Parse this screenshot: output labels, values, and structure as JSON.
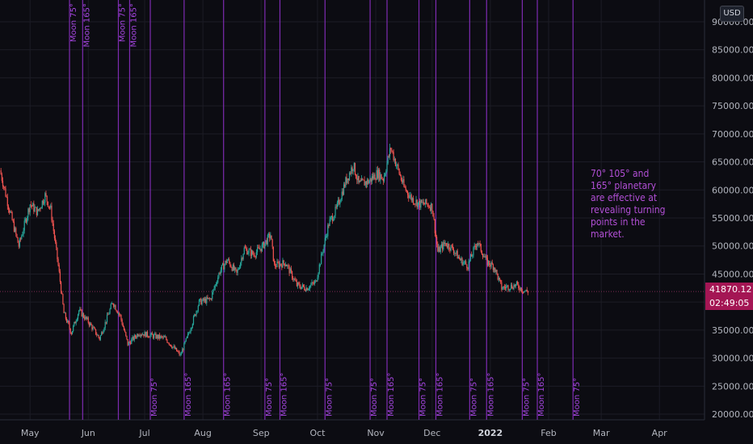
{
  "currency_label": "USD",
  "annotation_text": "70° 105° and 165° planetary are effective at revealing turning points in the market.",
  "current_price": "41870.12",
  "countdown": "02:49:05",
  "colors": {
    "background": "#0c0c12",
    "grid": "#1c1c26",
    "moon_line": "#8a2fc2",
    "moon_label": "#a545e0",
    "candle_up": "#26a69a",
    "candle_down": "#ef5350",
    "price_line": "#7d2a52",
    "axis_text": "#b2b5be"
  },
  "chart_data": {
    "type": "candlestick",
    "title": "",
    "xlabel": "",
    "ylabel": "",
    "x_range": [
      "2021-04-15",
      "2022-04-25"
    ],
    "ylim": [
      19000,
      91000
    ],
    "y_ticks": [
      20000,
      25000,
      30000,
      35000,
      40000,
      45000,
      50000,
      55000,
      60000,
      65000,
      70000,
      75000,
      80000,
      85000,
      90000
    ],
    "y_tick_labels": [
      "20000.00",
      "25000.00",
      "30000.00",
      "35000.00",
      "40000.00",
      "45000.00",
      "50000.00",
      "55000.00",
      "60000.00",
      "65000.00",
      "70000.00",
      "75000.00",
      "80000.00",
      "85000.00",
      "90000.00"
    ],
    "x_ticks": [
      {
        "date": "2021-05-01",
        "label": "May"
      },
      {
        "date": "2021-06-01",
        "label": "Jun"
      },
      {
        "date": "2021-07-01",
        "label": "Jul"
      },
      {
        "date": "2021-08-01",
        "label": "Aug"
      },
      {
        "date": "2021-09-01",
        "label": "Sep"
      },
      {
        "date": "2021-10-01",
        "label": "Oct"
      },
      {
        "date": "2021-11-01",
        "label": "Nov"
      },
      {
        "date": "2021-12-01",
        "label": "Dec"
      },
      {
        "date": "2022-01-01",
        "label": "2022"
      },
      {
        "date": "2022-02-01",
        "label": "Feb"
      },
      {
        "date": "2022-03-01",
        "label": "Mar"
      },
      {
        "date": "2022-04-01",
        "label": "Apr"
      }
    ],
    "grid": true,
    "last_price": 41870.12,
    "price_anchors": [
      [
        "2021-04-15",
        63500
      ],
      [
        "2021-04-20",
        56500
      ],
      [
        "2021-04-25",
        50000
      ],
      [
        "2021-05-01",
        57500
      ],
      [
        "2021-05-05",
        56000
      ],
      [
        "2021-05-09",
        59000
      ],
      [
        "2021-05-12",
        56500
      ],
      [
        "2021-05-16",
        46500
      ],
      [
        "2021-05-19",
        38000
      ],
      [
        "2021-05-23",
        34500
      ],
      [
        "2021-05-27",
        38500
      ],
      [
        "2021-06-01",
        36500
      ],
      [
        "2021-06-07",
        33500
      ],
      [
        "2021-06-14",
        40000
      ],
      [
        "2021-06-18",
        37500
      ],
      [
        "2021-06-22",
        32500
      ],
      [
        "2021-06-28",
        34500
      ],
      [
        "2021-07-05",
        34000
      ],
      [
        "2021-07-12",
        33500
      ],
      [
        "2021-07-20",
        30500
      ],
      [
        "2021-07-24",
        34000
      ],
      [
        "2021-07-30",
        40000
      ],
      [
        "2021-08-05",
        40500
      ],
      [
        "2021-08-10",
        45500
      ],
      [
        "2021-08-14",
        47500
      ],
      [
        "2021-08-19",
        45000
      ],
      [
        "2021-08-23",
        49500
      ],
      [
        "2021-08-28",
        48500
      ],
      [
        "2021-09-02",
        50000
      ],
      [
        "2021-09-06",
        52000
      ],
      [
        "2021-09-08",
        46500
      ],
      [
        "2021-09-14",
        47000
      ],
      [
        "2021-09-20",
        43000
      ],
      [
        "2021-09-25",
        42500
      ],
      [
        "2021-09-30",
        43500
      ],
      [
        "2021-10-03",
        48000
      ],
      [
        "2021-10-07",
        54000
      ],
      [
        "2021-10-11",
        56500
      ],
      [
        "2021-10-16",
        61500
      ],
      [
        "2021-10-20",
        64500
      ],
      [
        "2021-10-23",
        61000
      ],
      [
        "2021-10-28",
        61500
      ],
      [
        "2021-11-02",
        63000
      ],
      [
        "2021-11-05",
        62000
      ],
      [
        "2021-11-09",
        67500
      ],
      [
        "2021-11-12",
        64500
      ],
      [
        "2021-11-16",
        60500
      ],
      [
        "2021-11-20",
        58500
      ],
      [
        "2021-11-24",
        57500
      ],
      [
        "2021-11-28",
        57500
      ],
      [
        "2021-12-01",
        57000
      ],
      [
        "2021-12-04",
        49000
      ],
      [
        "2021-12-08",
        50500
      ],
      [
        "2021-12-12",
        49500
      ],
      [
        "2021-12-16",
        47500
      ],
      [
        "2021-12-20",
        46500
      ],
      [
        "2021-12-25",
        50800
      ],
      [
        "2021-12-30",
        47200
      ],
      [
        "2022-01-03",
        46300
      ],
      [
        "2022-01-07",
        42500
      ],
      [
        "2022-01-11",
        42800
      ],
      [
        "2022-01-15",
        43000
      ],
      [
        "2022-01-19",
        42000
      ],
      [
        "2022-01-21",
        41870
      ]
    ],
    "moon_lines": [
      {
        "date": "2021-05-22",
        "label": "Moon 75°",
        "label_pos": "top"
      },
      {
        "date": "2021-05-29",
        "label": "Moon 165°",
        "label_pos": "top"
      },
      {
        "date": "2021-06-17",
        "label": "Moon 75°",
        "label_pos": "top"
      },
      {
        "date": "2021-06-23",
        "label": "Moon 165°",
        "label_pos": "top"
      },
      {
        "date": "2021-07-04",
        "label": "Moon 75°",
        "label_pos": "bottom"
      },
      {
        "date": "2021-07-22",
        "label": "Moon 165°",
        "label_pos": "bottom"
      },
      {
        "date": "2021-08-12",
        "label": "Moon 165°",
        "label_pos": "bottom"
      },
      {
        "date": "2021-09-03",
        "label": "Moon 75°",
        "label_pos": "bottom"
      },
      {
        "date": "2021-09-11",
        "label": "Moon 165°",
        "label_pos": "bottom"
      },
      {
        "date": "2021-10-05",
        "label": "Moon 75°",
        "label_pos": "bottom"
      },
      {
        "date": "2021-10-29",
        "label": "Moon 75°",
        "label_pos": "bottom"
      },
      {
        "date": "2021-11-07",
        "label": "Moon 165°",
        "label_pos": "bottom"
      },
      {
        "date": "2021-11-24",
        "label": "Moon 75°",
        "label_pos": "bottom"
      },
      {
        "date": "2021-12-03",
        "label": "Moon 165°",
        "label_pos": "bottom"
      },
      {
        "date": "2021-12-21",
        "label": "Moon 75°",
        "label_pos": "bottom"
      },
      {
        "date": "2021-12-30",
        "label": "Moon 165°",
        "label_pos": "bottom"
      },
      {
        "date": "2022-01-18",
        "label": "Moon 75°",
        "label_pos": "bottom"
      },
      {
        "date": "2022-01-26",
        "label": "Moon 165°",
        "label_pos": "bottom"
      },
      {
        "date": "2022-02-14",
        "label": "Moon 75°",
        "label_pos": "bottom"
      }
    ]
  }
}
